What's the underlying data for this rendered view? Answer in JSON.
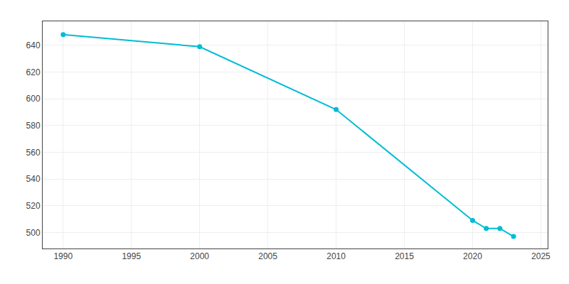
{
  "chart_data": {
    "type": "line",
    "x": [
      1990,
      2000,
      2010,
      2020,
      2021,
      2022,
      2023
    ],
    "values": [
      648,
      639,
      592,
      509,
      503,
      503,
      497
    ],
    "color": "#00BCD4",
    "marker": "circle",
    "xlim": [
      1988.5,
      2025.5
    ],
    "ylim": [
      488,
      658
    ],
    "xticks": [
      1990,
      1995,
      2000,
      2005,
      2010,
      2015,
      2020,
      2025
    ],
    "yticks": [
      500,
      520,
      540,
      560,
      580,
      600,
      620,
      640
    ],
    "grid": true
  }
}
